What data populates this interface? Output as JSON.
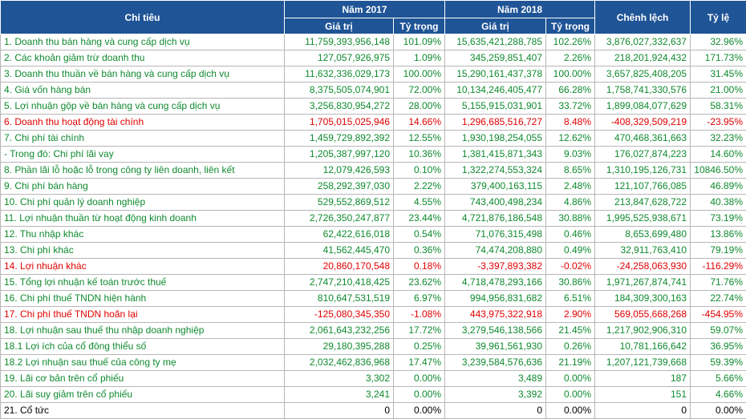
{
  "headers": {
    "chi_tieu": "Chỉ tiêu",
    "year1": "Năm 2017",
    "year2": "Năm 2018",
    "chenh_lech": "Chênh lệch",
    "ty_le": "Tỷ lệ",
    "gia_tri": "Giá trị",
    "ty_trong": "Tỷ trọng"
  },
  "colors": {
    "header_bg": "#1f5496",
    "green": "#0f8a2f",
    "red": "#e00000",
    "black": "#000000"
  },
  "rows": [
    {
      "label": "1. Doanh thu bán hàng và cung cấp dịch vụ",
      "v2017": "11,759,393,956,148",
      "p2017": "101.09%",
      "v2018": "15,635,421,288,785",
      "p2018": "102.26%",
      "diff": "3,876,027,332,637",
      "rate": "32.96%",
      "color": "green"
    },
    {
      "label": "2. Các khoản giảm trừ doanh thu",
      "v2017": "127,057,926,975",
      "p2017": "1.09%",
      "v2018": "345,259,851,407",
      "p2018": "2.26%",
      "diff": "218,201,924,432",
      "rate": "171.73%",
      "color": "green"
    },
    {
      "label": "3. Doanh thu thuần về bán hàng và cung cấp dịch vụ",
      "v2017": "11,632,336,029,173",
      "p2017": "100.00%",
      "v2018": "15,290,161,437,378",
      "p2018": "100.00%",
      "diff": "3,657,825,408,205",
      "rate": "31.45%",
      "color": "green"
    },
    {
      "label": "4. Giá vốn hàng bán",
      "v2017": "8,375,505,074,901",
      "p2017": "72.00%",
      "v2018": "10,134,246,405,477",
      "p2018": "66.28%",
      "diff": "1,758,741,330,576",
      "rate": "21.00%",
      "color": "green"
    },
    {
      "label": "5. Lợi nhuận gộp về bán hàng và cung cấp dịch vụ",
      "v2017": "3,256,830,954,272",
      "p2017": "28.00%",
      "v2018": "5,155,915,031,901",
      "p2018": "33.72%",
      "diff": "1,899,084,077,629",
      "rate": "58.31%",
      "color": "green"
    },
    {
      "label": "6. Doanh thu hoạt động tài chính",
      "v2017": "1,705,015,025,946",
      "p2017": "14.66%",
      "v2018": "1,296,685,516,727",
      "p2018": "8.48%",
      "diff": "-408,329,509,219",
      "rate": "-23.95%",
      "color": "red"
    },
    {
      "label": "7. Chi phí tài chính",
      "v2017": "1,459,729,892,392",
      "p2017": "12.55%",
      "v2018": "1,930,198,254,055",
      "p2018": "12.62%",
      "diff": "470,468,361,663",
      "rate": "32.23%",
      "color": "green"
    },
    {
      "label": " - Trong đó: Chi phí lãi vay",
      "v2017": "1,205,387,997,120",
      "p2017": "10.36%",
      "v2018": "1,381,415,871,343",
      "p2018": "9.03%",
      "diff": "176,027,874,223",
      "rate": "14.60%",
      "color": "green"
    },
    {
      "label": "8. Phần lãi lỗ hoặc lỗ trong công ty liên doanh, liên kết",
      "v2017": "12,079,426,593",
      "p2017": "0.10%",
      "v2018": "1,322,274,553,324",
      "p2018": "8.65%",
      "diff": "1,310,195,126,731",
      "rate": "10846.50%",
      "color": "green"
    },
    {
      "label": "9. Chi phí bán hàng",
      "v2017": "258,292,397,030",
      "p2017": "2.22%",
      "v2018": "379,400,163,115",
      "p2018": "2.48%",
      "diff": "121,107,766,085",
      "rate": "46.89%",
      "color": "green"
    },
    {
      "label": "10. Chi phí quản lý doanh nghiệp",
      "v2017": "529,552,869,512",
      "p2017": "4.55%",
      "v2018": "743,400,498,234",
      "p2018": "4.86%",
      "diff": "213,847,628,722",
      "rate": "40.38%",
      "color": "green"
    },
    {
      "label": "11. Lợi nhuận thuần từ hoạt động kinh doanh",
      "v2017": "2,726,350,247,877",
      "p2017": "23.44%",
      "v2018": "4,721,876,186,548",
      "p2018": "30.88%",
      "diff": "1,995,525,938,671",
      "rate": "73.19%",
      "color": "green"
    },
    {
      "label": "12. Thu nhập khác",
      "v2017": "62,422,616,018",
      "p2017": "0.54%",
      "v2018": "71,076,315,498",
      "p2018": "0.46%",
      "diff": "8,653,699,480",
      "rate": "13.86%",
      "color": "green"
    },
    {
      "label": "13. Chi phí khác",
      "v2017": "41,562,445,470",
      "p2017": "0.36%",
      "v2018": "74,474,208,880",
      "p2018": "0.49%",
      "diff": "32,911,763,410",
      "rate": "79.19%",
      "color": "green"
    },
    {
      "label": "14. Lợi nhuận khác",
      "v2017": "20,860,170,548",
      "p2017": "0.18%",
      "v2018": "-3,397,893,382",
      "p2018": "-0.02%",
      "diff": "-24,258,063,930",
      "rate": "-116.29%",
      "color": "red"
    },
    {
      "label": "15. Tổng lợi nhuận kế toán trước thuế",
      "v2017": "2,747,210,418,425",
      "p2017": "23.62%",
      "v2018": "4,718,478,293,166",
      "p2018": "30.86%",
      "diff": "1,971,267,874,741",
      "rate": "71.76%",
      "color": "green"
    },
    {
      "label": "16. Chi phí thuế TNDN hiện hành",
      "v2017": "810,647,531,519",
      "p2017": "6.97%",
      "v2018": "994,956,831,682",
      "p2018": "6.51%",
      "diff": "184,309,300,163",
      "rate": "22.74%",
      "color": "green"
    },
    {
      "label": "17. Chi phí thuế TNDN hoãn lại",
      "v2017": "-125,080,345,350",
      "p2017": "-1.08%",
      "v2018": "443,975,322,918",
      "p2018": "2.90%",
      "diff": "569,055,668,268",
      "rate": "-454.95%",
      "color": "red"
    },
    {
      "label": "18. Lợi nhuận sau thuế thu nhập doanh nghiệp",
      "v2017": "2,061,643,232,256",
      "p2017": "17.72%",
      "v2018": "3,279,546,138,566",
      "p2018": "21.45%",
      "diff": "1,217,902,906,310",
      "rate": "59.07%",
      "color": "green"
    },
    {
      "label": "18.1 Lợi ích của cổ đông thiểu số",
      "v2017": "29,180,395,288",
      "p2017": "0.25%",
      "v2018": "39,961,561,930",
      "p2018": "0.26%",
      "diff": "10,781,166,642",
      "rate": "36.95%",
      "color": "green"
    },
    {
      "label": "18.2 Lợi nhuận sau thuế của công ty mẹ",
      "v2017": "2,032,462,836,968",
      "p2017": "17.47%",
      "v2018": "3,239,584,576,636",
      "p2018": "21.19%",
      "diff": "1,207,121,739,668",
      "rate": "59.39%",
      "color": "green"
    },
    {
      "label": "19. Lãi cơ bản trên cổ phiếu",
      "v2017": "3,302",
      "p2017": "0.00%",
      "v2018": "3,489",
      "p2018": "0.00%",
      "diff": "187",
      "rate": "5.66%",
      "color": "green"
    },
    {
      "label": "20. Lãi suy giảm trên cổ phiếu",
      "v2017": "3,241",
      "p2017": "0.00%",
      "v2018": "3,392",
      "p2018": "0.00%",
      "diff": "151",
      "rate": "4.66%",
      "color": "green"
    },
    {
      "label": "21. Cổ tức",
      "v2017": "0",
      "p2017": "0.00%",
      "v2018": "0",
      "p2018": "0.00%",
      "diff": "0",
      "rate": "0.00%",
      "color": "black"
    }
  ]
}
